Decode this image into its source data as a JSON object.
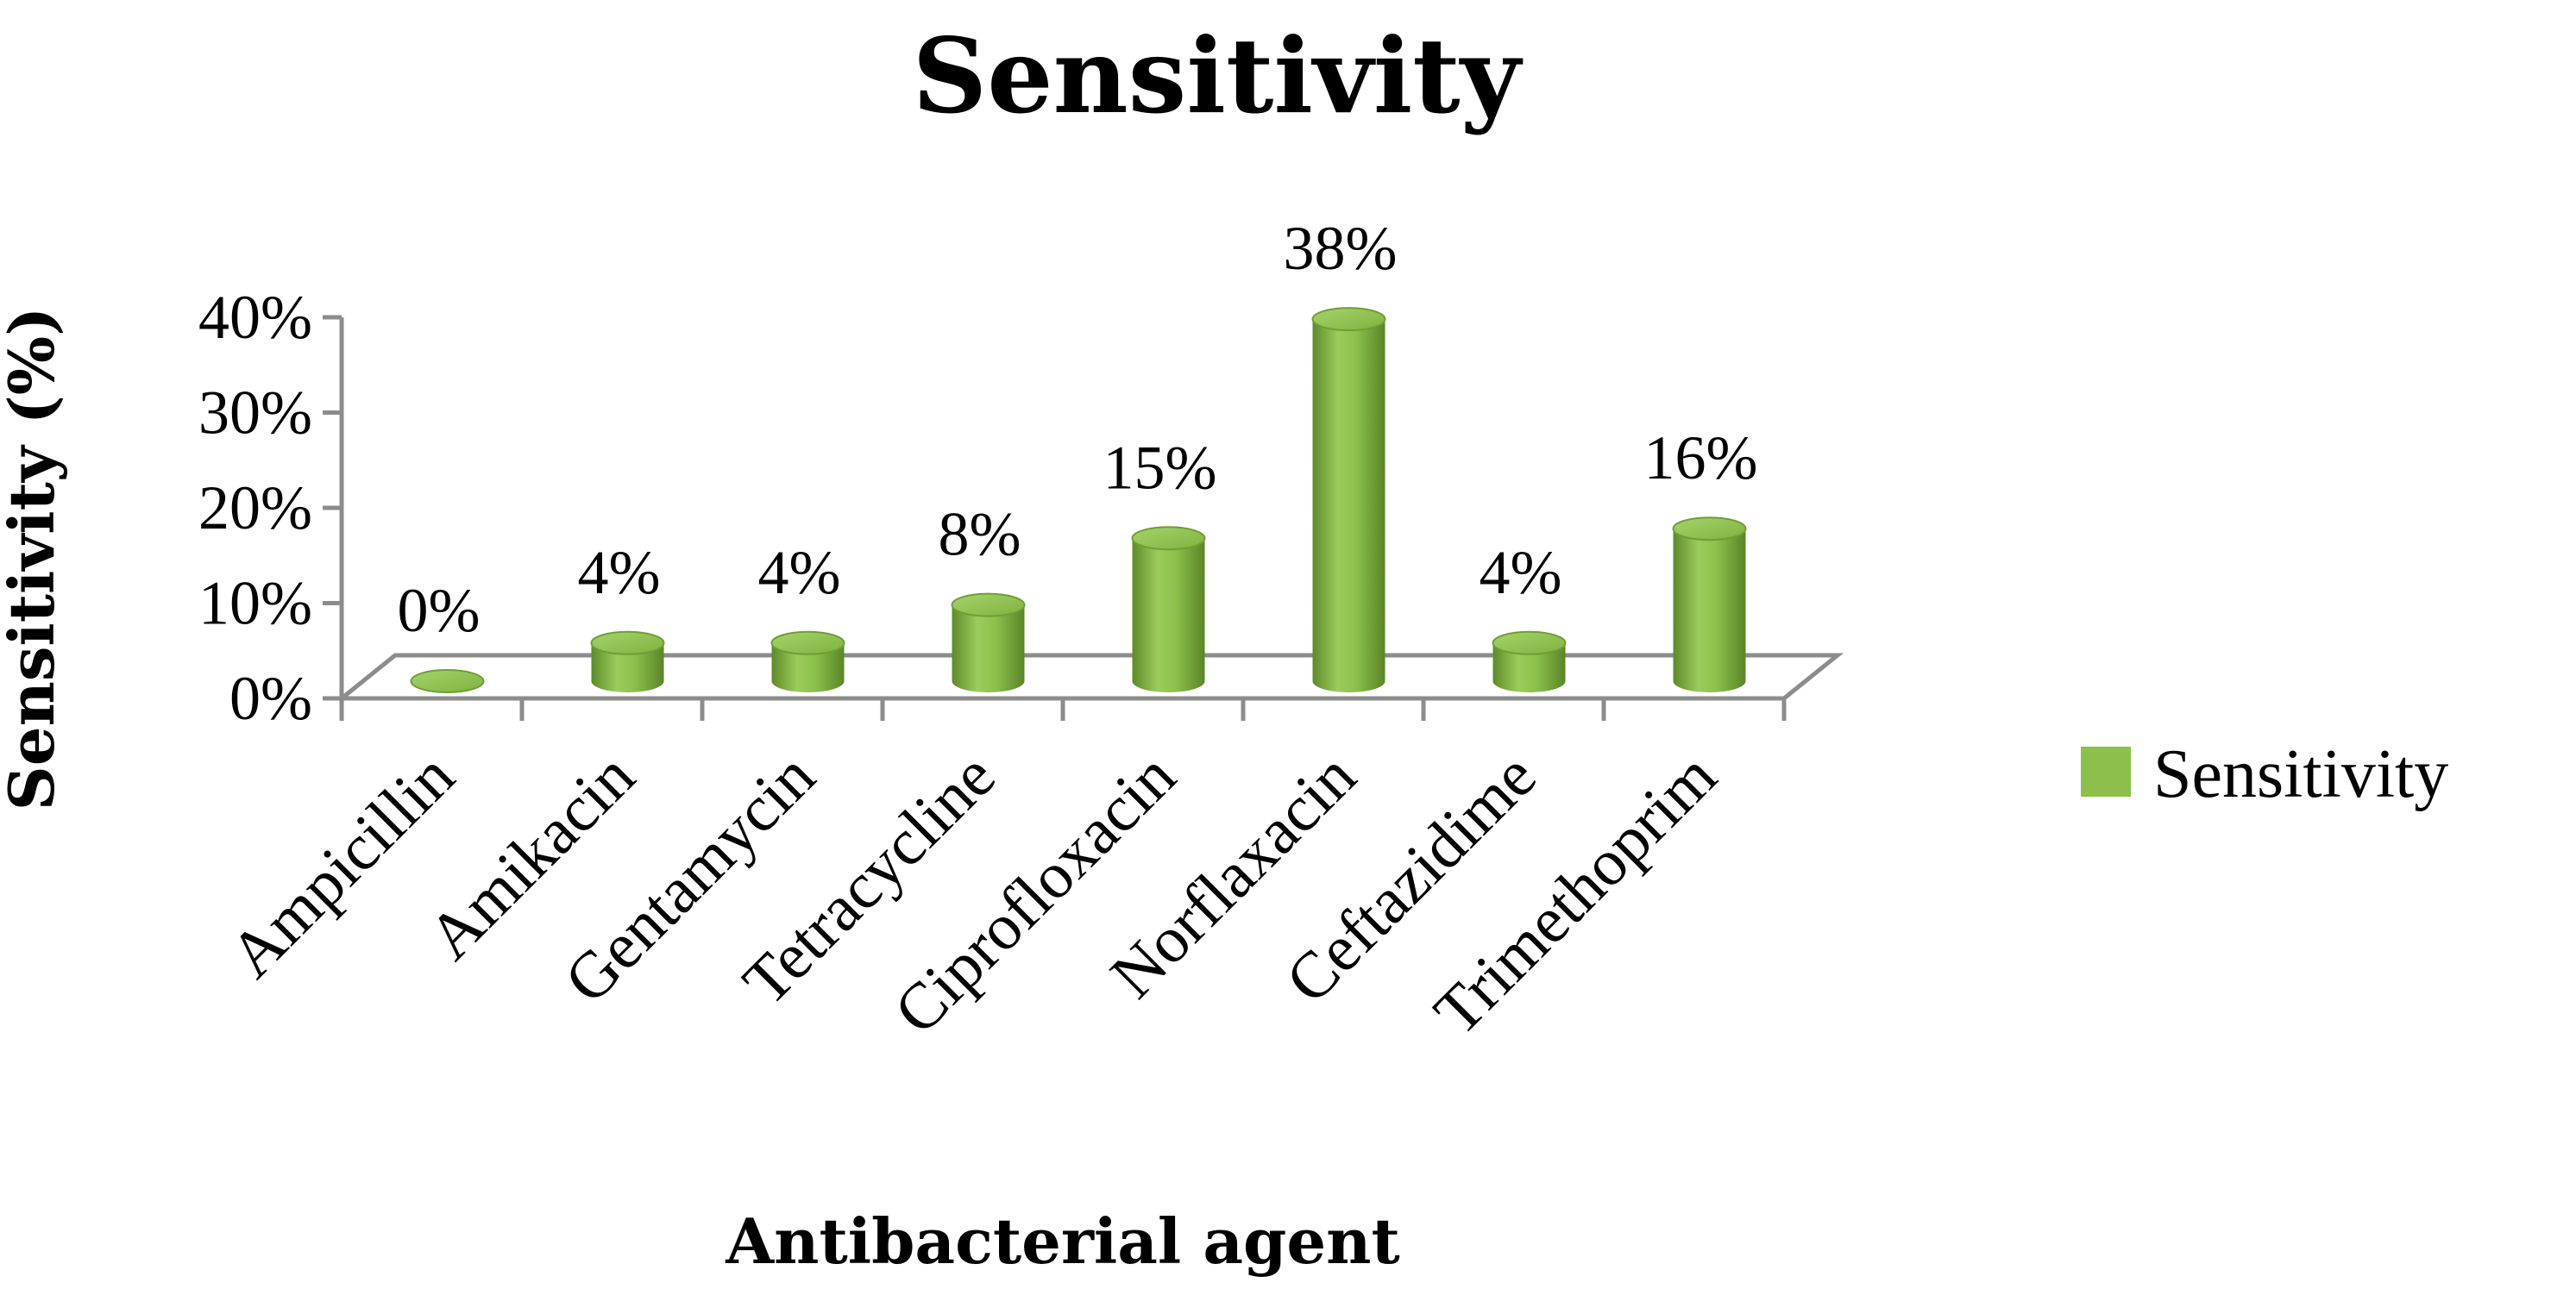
{
  "chart_data": {
    "type": "bar",
    "title": "Sensitivity",
    "xlabel": "Antibacterial agent",
    "ylabel": "Sensitivity (%)",
    "categories": [
      "Ampicillin",
      "Amikacin",
      "Gentamycin",
      "Tetracycline",
      "Ciprofloxacin",
      "Norflaxacin",
      "Ceftazidime",
      "Trimethoprim"
    ],
    "series": [
      {
        "name": "Sensitivity",
        "values": [
          0,
          4,
          4,
          8,
          15,
          38,
          4,
          16
        ],
        "data_labels": [
          "0%",
          "4%",
          "4%",
          "8%",
          "15%",
          "38%",
          "4%",
          "16%"
        ]
      }
    ],
    "ylim": [
      0,
      40
    ],
    "yticks": [
      "0%",
      "10%",
      "20%",
      "30%",
      "40%"
    ],
    "grid": false,
    "style": "3d-cylinder",
    "legend_position": "right",
    "color": "#8cc04b"
  }
}
